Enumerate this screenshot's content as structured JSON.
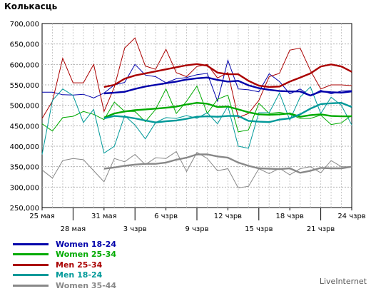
{
  "title": "Колькасць",
  "watermark": "LiveInternet",
  "chart_data": {
    "type": "line",
    "x": [
      "25 мая",
      "26 мая",
      "27 мая",
      "28 мая",
      "29 мая",
      "30 мая",
      "31 мая",
      "1 чзрв",
      "2 чзрв",
      "3 чзрв",
      "4 чзрв",
      "5 чзрв",
      "6 чзрв",
      "7 чзрв",
      "8 чзрв",
      "9 чзрв",
      "10 чзрв",
      "11 чзрв",
      "12 чзрв",
      "13 чзрв",
      "14 чзрв",
      "15 чзрв",
      "16 чзрв",
      "17 чзрв",
      "18 чзрв",
      "19 чзрв",
      "20 чзрв",
      "21 чзрв",
      "22 чзрв",
      "23 чзрв",
      "24 чзрв"
    ],
    "xticks_top": [
      "25 мая",
      "31 мая",
      "6 чзрв",
      "12 чзрв",
      "18 чзрв",
      "24 чзрв"
    ],
    "xticks_bottom": [
      "28 мая",
      "3 чзрв",
      "9 чзрв",
      "15 чзрв",
      "21 чзрв"
    ],
    "yticks": [
      "700,000",
      "650,000",
      "600,000",
      "550,000",
      "500,000",
      "450,000",
      "400,000",
      "350,000",
      "300,000",
      "250,000"
    ],
    "ylim": [
      250000,
      700000
    ],
    "series": [
      {
        "name": "Women 18-24",
        "color": "#0000aa",
        "values": [
          532000,
          532000,
          526000,
          525000,
          527000,
          518000,
          530000,
          550000,
          556000,
          600000,
          574000,
          570000,
          555000,
          565000,
          568000,
          575000,
          578000,
          510000,
          610000,
          540000,
          538000,
          533000,
          577000,
          558000,
          528000,
          540000,
          523000,
          537000,
          528000,
          535000,
          536000
        ],
        "avg": [
          null,
          null,
          null,
          null,
          null,
          null,
          529000,
          531000,
          533000,
          540000,
          546000,
          550000,
          554000,
          558000,
          563000,
          566000,
          568000,
          562000,
          558000,
          560000,
          549000,
          542000,
          538000,
          535000,
          534000,
          534000,
          524000,
          534000,
          532000,
          531000,
          534000
        ]
      },
      {
        "name": "Women 25-34",
        "color": "#00aa00",
        "values": [
          455000,
          437000,
          470000,
          473000,
          485000,
          478000,
          465000,
          508000,
          485000,
          485000,
          460000,
          490000,
          540000,
          480000,
          510000,
          547000,
          480000,
          515000,
          525000,
          435000,
          440000,
          505000,
          480000,
          483000,
          478000,
          468000,
          468000,
          476000,
          453000,
          457000,
          476000
        ],
        "avg": [
          null,
          null,
          null,
          null,
          null,
          null,
          470000,
          480000,
          485000,
          488000,
          490000,
          492000,
          494000,
          497000,
          502000,
          506000,
          504000,
          496000,
          497000,
          490000,
          483000,
          478000,
          477000,
          478000,
          480000,
          472000,
          476000,
          478000,
          474000,
          473000,
          473000
        ]
      },
      {
        "name": "Men 25-34",
        "color": "#aa0000",
        "values": [
          468000,
          510000,
          615000,
          555000,
          555000,
          600000,
          485000,
          545000,
          640000,
          665000,
          596000,
          588000,
          637000,
          580000,
          570000,
          595000,
          600000,
          567000,
          580000,
          470000,
          480000,
          512000,
          570000,
          578000,
          635000,
          640000,
          585000,
          540000,
          550000,
          550000,
          548000
        ],
        "avg": [
          null,
          null,
          null,
          null,
          null,
          null,
          545000,
          550000,
          565000,
          573000,
          578000,
          583000,
          588000,
          593000,
          598000,
          601000,
          597000,
          580000,
          576000,
          576000,
          560000,
          548000,
          545000,
          546000,
          558000,
          568000,
          578000,
          595000,
          600000,
          595000,
          582000
        ]
      },
      {
        "name": "Men 18-24",
        "color": "#009999",
        "values": [
          380000,
          512000,
          540000,
          524000,
          458000,
          490000,
          383000,
          400000,
          475000,
          452000,
          418000,
          458000,
          470000,
          468000,
          475000,
          468000,
          482000,
          455000,
          498000,
          400000,
          395000,
          482000,
          482000,
          530000,
          464000,
          520000,
          545000,
          480000,
          520000,
          500000,
          452000
        ],
        "avg": [
          null,
          null,
          null,
          null,
          null,
          null,
          468000,
          474000,
          472000,
          468000,
          463000,
          458000,
          461000,
          463000,
          467000,
          472000,
          473000,
          472000,
          474000,
          474000,
          462000,
          460000,
          459000,
          465000,
          468000,
          478000,
          492000,
          503000,
          505000,
          506000,
          496000
        ]
      },
      {
        "name": "Women 35-44",
        "color": "#888888",
        "values": [
          342000,
          322000,
          365000,
          370000,
          367000,
          340000,
          313000,
          370000,
          362000,
          380000,
          355000,
          372000,
          370000,
          387000,
          338000,
          385000,
          370000,
          340000,
          345000,
          298000,
          302000,
          345000,
          333000,
          346000,
          330000,
          345000,
          350000,
          335000,
          365000,
          350000,
          350000
        ],
        "avg": [
          null,
          null,
          null,
          null,
          null,
          null,
          345000,
          348000,
          352000,
          355000,
          357000,
          357000,
          360000,
          367000,
          372000,
          380000,
          380000,
          375000,
          372000,
          360000,
          352000,
          346000,
          345000,
          344000,
          346000,
          335000,
          340000,
          347000,
          346000,
          346000,
          350000
        ]
      }
    ]
  }
}
